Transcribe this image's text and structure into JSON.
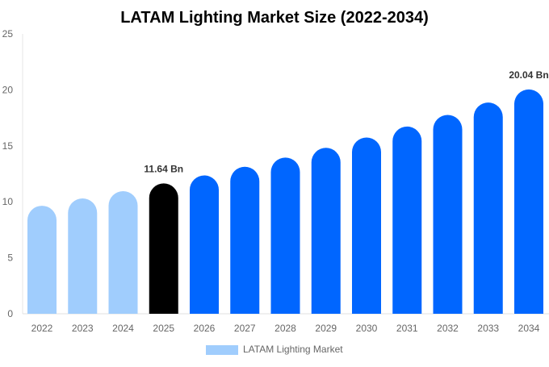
{
  "chart_data": {
    "type": "bar",
    "title": "LATAM Lighting Market Size (2022-2034)",
    "xlabel": "",
    "ylabel": "",
    "ylim": [
      0,
      25
    ],
    "yticks": [
      0,
      5,
      10,
      15,
      20,
      25
    ],
    "grid": false,
    "legend_position": "bottom",
    "categories": [
      "2022",
      "2023",
      "2024",
      "2025",
      "2026",
      "2027",
      "2028",
      "2029",
      "2030",
      "2031",
      "2032",
      "2033",
      "2034"
    ],
    "series": [
      {
        "name": "LATAM Lighting Market",
        "values": [
          9.65,
          10.3,
          10.95,
          11.64,
          12.36,
          13.13,
          13.95,
          14.82,
          15.74,
          16.72,
          17.76,
          18.87,
          20.04
        ]
      }
    ],
    "data_labels": [
      {
        "category": "2025",
        "text": "11.64 Bn"
      },
      {
        "category": "2034",
        "text": "20.04 Bn"
      }
    ],
    "colors": {
      "historical": "#a0cdfd",
      "current": "#000000",
      "forecast": "#0066ff"
    },
    "bar_color_groups": [
      "historical",
      "historical",
      "historical",
      "current",
      "forecast",
      "forecast",
      "forecast",
      "forecast",
      "forecast",
      "forecast",
      "forecast",
      "forecast",
      "forecast"
    ]
  }
}
